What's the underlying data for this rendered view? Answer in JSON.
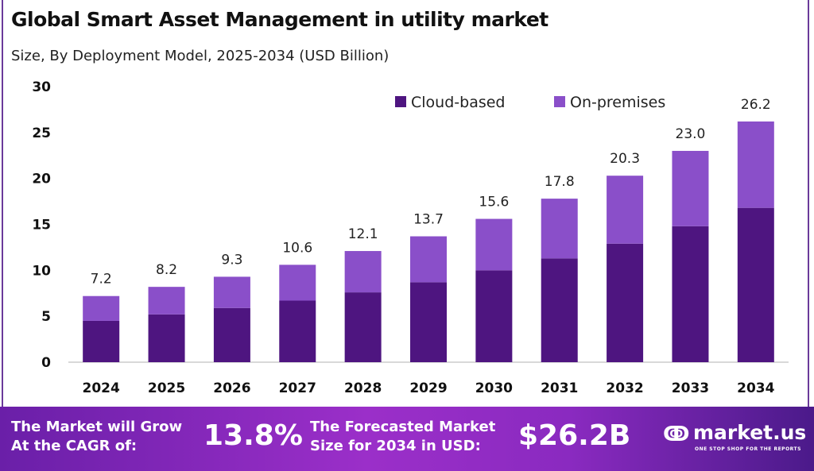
{
  "title": "Global Smart Asset Management in utility market",
  "subtitle": "Size, By Deployment Model, 2025-2034 (USD Billion)",
  "chart_data": {
    "type": "bar",
    "stacked": true,
    "categories": [
      "2024",
      "2025",
      "2026",
      "2027",
      "2028",
      "2029",
      "2030",
      "2031",
      "2032",
      "2033",
      "2034"
    ],
    "series": [
      {
        "name": "Cloud-based",
        "color": "#4e1580",
        "values": [
          4.5,
          5.2,
          5.9,
          6.7,
          7.6,
          8.7,
          10.0,
          11.3,
          12.9,
          14.8,
          16.8
        ]
      },
      {
        "name": "On-premises",
        "color": "#8a4fc9",
        "values": [
          2.7,
          3.0,
          3.4,
          3.9,
          4.5,
          5.0,
          5.6,
          6.5,
          7.4,
          8.2,
          9.4
        ]
      }
    ],
    "totals": [
      "7.2",
      "8.2",
      "9.3",
      "10.6",
      "12.1",
      "13.7",
      "15.6",
      "17.8",
      "20.3",
      "23.0",
      "26.2"
    ],
    "yticks": [
      "0",
      "5",
      "10",
      "15",
      "20",
      "25",
      "30"
    ],
    "ylim": [
      0,
      30
    ],
    "grid": false,
    "legend": "top-right"
  },
  "banner": {
    "cagr_label_1": "The Market will Grow",
    "cagr_label_2": "At the CAGR of:",
    "cagr_value": "13.8%",
    "forecast_label_1": "The Forecasted Market",
    "forecast_label_2": "Size for 2034 in USD:",
    "forecast_value": "$26.2B",
    "logo_text": "market.us",
    "logo_tagline": "ONE STOP SHOP FOR THE REPORTS"
  }
}
